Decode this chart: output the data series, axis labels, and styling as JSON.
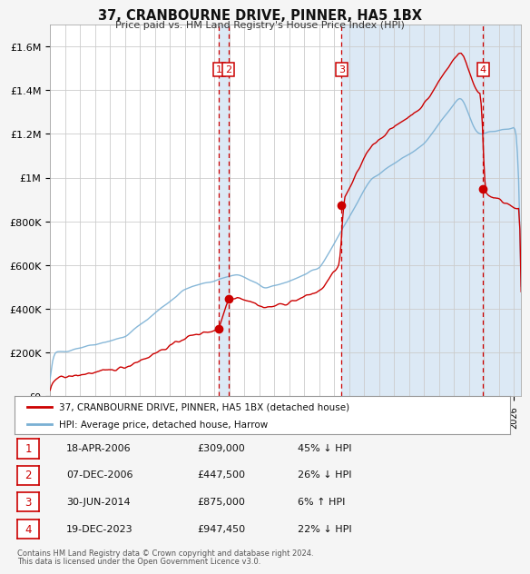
{
  "title": "37, CRANBOURNE DRIVE, PINNER, HA5 1BX",
  "subtitle": "Price paid vs. HM Land Registry's House Price Index (HPI)",
  "sale_color": "#cc0000",
  "hpi_color": "#7ab0d4",
  "hpi_fill_color": "#dce9f5",
  "background_color": "#f5f5f5",
  "plot_bg": "#ffffff",
  "grid_color": "#cccccc",
  "xlim_start": 1995.0,
  "xlim_end": 2026.5,
  "ylim": [
    0,
    1700000
  ],
  "yticks": [
    0,
    200000,
    400000,
    600000,
    800000,
    1000000,
    1200000,
    1400000,
    1600000
  ],
  "ytick_labels": [
    "£0",
    "£200K",
    "£400K",
    "£600K",
    "£800K",
    "£1M",
    "£1.2M",
    "£1.4M",
    "£1.6M"
  ],
  "purchases": [
    {
      "num": "1",
      "date_year": 2006.29,
      "price": 309000
    },
    {
      "num": "2",
      "date_year": 2006.92,
      "price": 447500
    },
    {
      "num": "3",
      "date_year": 2014.49,
      "price": 875000
    },
    {
      "num": "4",
      "date_year": 2023.96,
      "price": 947450
    }
  ],
  "legend_entries": [
    {
      "label": "37, CRANBOURNE DRIVE, PINNER, HA5 1BX (detached house)",
      "color": "#cc0000"
    },
    {
      "label": "HPI: Average price, detached house, Harrow",
      "color": "#7ab0d4"
    }
  ],
  "table_rows": [
    {
      "num": "1",
      "date": "18-APR-2006",
      "price": "£309,000",
      "hpi": "45% ↓ HPI"
    },
    {
      "num": "2",
      "date": "07-DEC-2006",
      "price": "£447,500",
      "hpi": "26% ↓ HPI"
    },
    {
      "num": "3",
      "date": "30-JUN-2014",
      "price": "£875,000",
      "hpi": "6% ↑ HPI"
    },
    {
      "num": "4",
      "date": "19-DEC-2023",
      "price": "£947,450",
      "hpi": "22% ↓ HPI"
    }
  ],
  "footnote1": "Contains HM Land Registry data © Crown copyright and database right 2024.",
  "footnote2": "This data is licensed under the Open Government Licence v3.0."
}
